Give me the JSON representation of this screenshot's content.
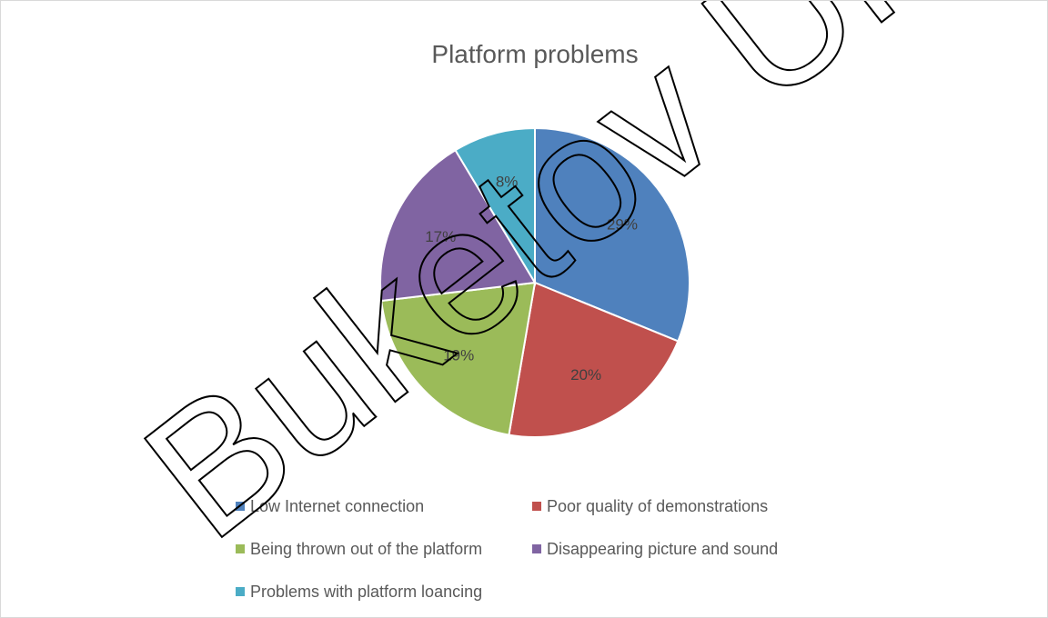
{
  "watermark": "Buketov Uni",
  "chart_data": {
    "type": "pie",
    "title": "Platform problems",
    "slices": [
      {
        "name": "Low Internet connection",
        "value": 29,
        "label": "29%",
        "color": "#4F81BD"
      },
      {
        "name": "Poor quality of demonstrations",
        "value": 20,
        "label": "20%",
        "color": "#C0504D"
      },
      {
        "name": "Being thrown out of the platform",
        "value": 19,
        "label": "19%",
        "color": "#9BBB59"
      },
      {
        "name": "Disappearing picture and sound",
        "value": 17,
        "label": "17%",
        "color": "#8064A2"
      },
      {
        "name": "Problems with platform loancing",
        "value": 8,
        "label": "8%",
        "color": "#4BACC6"
      }
    ],
    "legend_position": "bottom"
  }
}
